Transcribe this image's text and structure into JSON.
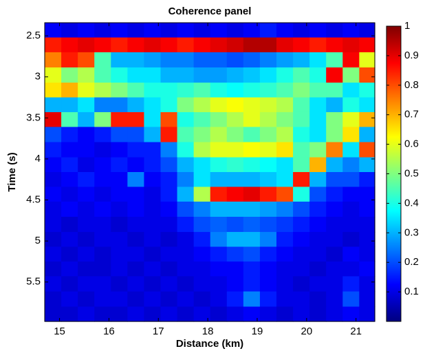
{
  "chart_data": {
    "type": "heatmap",
    "title": "Coherence panel",
    "xlabel": "Distance (km)",
    "ylabel": "Time (s)",
    "x": [
      14.87,
      15.2,
      15.54,
      15.87,
      16.21,
      16.54,
      16.88,
      17.21,
      17.55,
      17.88,
      18.22,
      18.55,
      18.89,
      19.22,
      19.56,
      19.89,
      20.23,
      20.56,
      20.9,
      21.23
    ],
    "y": [
      2.43,
      2.61,
      2.79,
      2.98,
      3.16,
      3.34,
      3.52,
      3.7,
      3.89,
      4.07,
      4.25,
      4.43,
      4.61,
      4.8,
      4.98,
      5.16,
      5.34,
      5.52,
      5.71,
      5.89
    ],
    "z": [
      [
        0.12,
        0.1,
        0.12,
        0.1,
        0.12,
        0.1,
        0.12,
        0.1,
        0.12,
        0.1,
        0.12,
        0.1,
        0.12,
        0.15,
        0.12,
        0.1,
        0.12,
        0.1,
        0.12,
        0.1
      ],
      [
        0.85,
        0.88,
        0.9,
        0.88,
        0.85,
        0.88,
        0.9,
        0.88,
        0.85,
        0.88,
        0.9,
        0.92,
        0.95,
        0.95,
        0.9,
        0.88,
        0.85,
        0.88,
        0.9,
        0.88
      ],
      [
        0.75,
        0.85,
        0.8,
        0.45,
        0.3,
        0.3,
        0.28,
        0.25,
        0.25,
        0.22,
        0.22,
        0.2,
        0.22,
        0.25,
        0.28,
        0.3,
        0.35,
        0.45,
        0.88,
        0.6
      ],
      [
        0.6,
        0.5,
        0.55,
        0.45,
        0.4,
        0.35,
        0.35,
        0.3,
        0.3,
        0.28,
        0.28,
        0.3,
        0.32,
        0.35,
        0.4,
        0.45,
        0.4,
        0.88,
        0.5,
        0.8
      ],
      [
        0.65,
        0.7,
        0.6,
        0.55,
        0.5,
        0.45,
        0.4,
        0.4,
        0.42,
        0.45,
        0.4,
        0.38,
        0.4,
        0.42,
        0.45,
        0.5,
        0.45,
        0.45,
        0.35,
        0.4
      ],
      [
        0.3,
        0.3,
        0.35,
        0.25,
        0.25,
        0.3,
        0.35,
        0.4,
        0.5,
        0.55,
        0.6,
        0.62,
        0.6,
        0.58,
        0.55,
        0.45,
        0.35,
        0.3,
        0.4,
        0.35
      ],
      [
        0.9,
        0.45,
        0.3,
        0.5,
        0.85,
        0.85,
        0.35,
        0.8,
        0.4,
        0.45,
        0.5,
        0.55,
        0.6,
        0.55,
        0.5,
        0.45,
        0.35,
        0.5,
        0.6,
        0.7
      ],
      [
        0.2,
        0.15,
        0.12,
        0.15,
        0.2,
        0.2,
        0.3,
        0.85,
        0.45,
        0.5,
        0.55,
        0.5,
        0.45,
        0.5,
        0.55,
        0.4,
        0.35,
        0.5,
        0.65,
        0.3
      ],
      [
        0.15,
        0.12,
        0.12,
        0.1,
        0.12,
        0.15,
        0.15,
        0.25,
        0.4,
        0.55,
        0.6,
        0.6,
        0.62,
        0.6,
        0.65,
        0.45,
        0.5,
        0.75,
        0.35,
        0.8
      ],
      [
        0.12,
        0.15,
        0.1,
        0.12,
        0.15,
        0.12,
        0.15,
        0.2,
        0.3,
        0.35,
        0.4,
        0.42,
        0.4,
        0.38,
        0.35,
        0.45,
        0.7,
        0.3,
        0.25,
        0.3
      ],
      [
        0.1,
        0.12,
        0.15,
        0.12,
        0.12,
        0.25,
        0.12,
        0.15,
        0.25,
        0.35,
        0.3,
        0.3,
        0.3,
        0.32,
        0.35,
        0.85,
        0.3,
        0.2,
        0.2,
        0.15
      ],
      [
        0.12,
        0.1,
        0.12,
        0.1,
        0.12,
        0.12,
        0.1,
        0.15,
        0.3,
        0.55,
        0.85,
        0.88,
        0.9,
        0.85,
        0.8,
        0.4,
        0.2,
        0.15,
        0.12,
        0.12
      ],
      [
        0.1,
        0.12,
        0.1,
        0.12,
        0.1,
        0.12,
        0.1,
        0.12,
        0.2,
        0.25,
        0.3,
        0.3,
        0.3,
        0.28,
        0.25,
        0.2,
        0.15,
        0.12,
        0.1,
        0.12
      ],
      [
        0.1,
        0.08,
        0.1,
        0.1,
        0.08,
        0.1,
        0.1,
        0.1,
        0.15,
        0.2,
        0.22,
        0.2,
        0.22,
        0.2,
        0.18,
        0.15,
        0.12,
        0.1,
        0.1,
        0.1
      ],
      [
        0.08,
        0.1,
        0.08,
        0.1,
        0.1,
        0.08,
        0.1,
        0.08,
        0.1,
        0.15,
        0.25,
        0.3,
        0.3,
        0.25,
        0.15,
        0.12,
        0.1,
        0.1,
        0.08,
        0.1
      ],
      [
        0.1,
        0.08,
        0.1,
        0.08,
        0.1,
        0.1,
        0.08,
        0.1,
        0.1,
        0.12,
        0.15,
        0.18,
        0.2,
        0.15,
        0.12,
        0.1,
        0.1,
        0.08,
        0.12,
        0.1
      ],
      [
        0.08,
        0.1,
        0.08,
        0.08,
        0.1,
        0.08,
        0.1,
        0.08,
        0.1,
        0.1,
        0.12,
        0.12,
        0.15,
        0.12,
        0.1,
        0.1,
        0.08,
        0.1,
        0.1,
        0.12
      ],
      [
        0.1,
        0.08,
        0.1,
        0.1,
        0.08,
        0.1,
        0.08,
        0.1,
        0.08,
        0.1,
        0.1,
        0.12,
        0.15,
        0.12,
        0.1,
        0.08,
        0.1,
        0.1,
        0.15,
        0.1
      ],
      [
        0.08,
        0.1,
        0.08,
        0.1,
        0.1,
        0.08,
        0.1,
        0.08,
        0.1,
        0.08,
        0.1,
        0.15,
        0.25,
        0.15,
        0.1,
        0.1,
        0.08,
        0.1,
        0.2,
        0.1
      ],
      [
        0.08,
        0.08,
        0.1,
        0.08,
        0.08,
        0.1,
        0.08,
        0.1,
        0.08,
        0.1,
        0.08,
        0.1,
        0.12,
        0.1,
        0.08,
        0.1,
        0.08,
        0.1,
        0.12,
        0.1
      ]
    ],
    "xlim": [
      14.7,
      21.38
    ],
    "ylim": [
      2.34,
      5.98
    ],
    "y_inverted": true,
    "xticks": [
      15,
      16,
      17,
      18,
      19,
      20,
      21
    ],
    "yticks": [
      2.5,
      3,
      3.5,
      4,
      4.5,
      5,
      5.5
    ],
    "colormap": "jet",
    "clim": [
      0,
      1
    ],
    "cticks": [
      0.1,
      0.2,
      0.3,
      0.4,
      0.5,
      0.6,
      0.7,
      0.8,
      0.9,
      1
    ]
  }
}
